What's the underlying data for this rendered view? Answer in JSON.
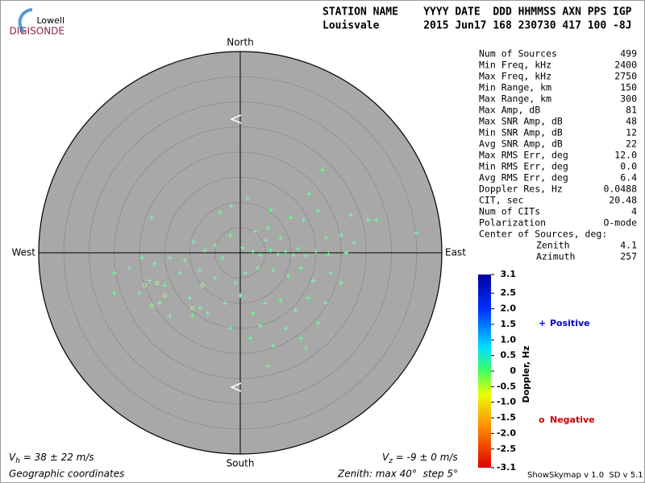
{
  "logo": {
    "top": "Lowell",
    "bottom": "DIGISONDE"
  },
  "header": {
    "labels": "STATION NAME    YYYY DATE  DDD HHMMSS AXN PPS IGP",
    "values": "Louisvale       2015 Jun17 168 230730 417 100 -8J"
  },
  "stats": [
    [
      "Num of Sources",
      "499"
    ],
    [
      "Min Freq, kHz",
      "2400"
    ],
    [
      "Max Freq, kHz",
      "2750"
    ],
    [
      "Min Range, km",
      "150"
    ],
    [
      "Max Range, km",
      "300"
    ],
    [
      "Max Amp, dB",
      "81"
    ],
    [
      "Max SNR Amp, dB",
      "48"
    ],
    [
      "Min SNR Amp, dB",
      "12"
    ],
    [
      "Avg SNR Amp, dB",
      "22"
    ],
    [
      "Max RMS Err, deg",
      "12.0"
    ],
    [
      "Min RMS Err, deg",
      "0.0"
    ],
    [
      "Avg RMS Err, deg",
      "6.4"
    ],
    [
      "Doppler Res, Hz",
      "0.0488"
    ],
    [
      "CIT, sec",
      "20.48"
    ],
    [
      "Num of CITs",
      "4"
    ],
    [
      "Polarization",
      "O-mode"
    ]
  ],
  "center_of_sources": {
    "label": "Center of Sources, deg:",
    "rows": [
      [
        "Zenith",
        "4.1"
      ],
      [
        "Azimuth",
        "257"
      ]
    ]
  },
  "velocity": {
    "horizontal": {
      "symbol": "V",
      "sub": "h",
      "text": " = 38 ± 22 m/s"
    },
    "vertical": {
      "symbol": "V",
      "sub": "z",
      "text": " = -9 ± 0 m/s"
    }
  },
  "footer": {
    "coordinates": "Geographic coordinates",
    "zenith": "Zenith: max 40°  step 5°",
    "version": "ShowSkymap v 1.0  SD v 5.1"
  },
  "chart_data": {
    "type": "scatter",
    "directions": {
      "north": "North",
      "south": "South",
      "east": "East",
      "west": "West"
    },
    "xlim": [
      -40,
      40
    ],
    "ylim": [
      -40,
      40
    ],
    "rings": [
      5,
      10,
      15,
      20,
      25,
      30,
      35,
      40
    ],
    "series": [
      {
        "name": "Positive",
        "marker": "plus",
        "color": "#70ffa0",
        "legend_color": "#0000cc",
        "x": [
          16.3,
          13.6,
          15.4,
          25.4,
          34.9,
          12.6,
          5.5,
          -1.8,
          -17.6,
          -9.3,
          -7.0,
          -3.5,
          0.5,
          2.5,
          4.0,
          6.0,
          7.5,
          9.0,
          10.5,
          11.5,
          13.0,
          15.0,
          17.5,
          21.0,
          5.0,
          8.0,
          3.0,
          -2.0,
          -5.0,
          -11.0,
          -14.0,
          -17.0,
          -19.5,
          -22.0,
          -25.0,
          -18.0,
          -15.0,
          -12.0,
          -8.0,
          -5.0,
          -1.0,
          1.0,
          3.5,
          6.5,
          9.5,
          12.0,
          14.5,
          18.0,
          20.0,
          -20.0,
          -16.0,
          -10.0,
          -6.5,
          -3.0,
          0.0,
          2.5,
          5.0,
          8.0,
          11.0,
          13.5,
          17.0,
          -25.0,
          -14.0,
          -9.5,
          4.0,
          9.0,
          12.0,
          15.5,
          6.5,
          5.5,
          13.0,
          2.0,
          -2.0,
          -8.0,
          1.5,
          6.0,
          10.0,
          -4.0,
          20.0,
          22.5,
          27.0,
          22.0,
          17.0
        ],
        "values": [
          16.5,
          11.7,
          8.3,
          6.6,
          4.0,
          6.6,
          5.0,
          9.3,
          7.0,
          2.2,
          0.5,
          -1.0,
          1.0,
          0.3,
          -0.5,
          0.5,
          -0.3,
          0.2,
          -0.5,
          0.8,
          -0.6,
          0.2,
          -0.3,
          0.0,
          2.5,
          3.0,
          4.2,
          3.5,
          1.5,
          -1.5,
          -1.0,
          -2.2,
          -1.0,
          -3.0,
          -4.0,
          -5.5,
          -6.5,
          -4.0,
          -3.5,
          -5.0,
          -6.0,
          -4.0,
          -3.0,
          -3.5,
          -4.5,
          -3.0,
          -5.5,
          -4.0,
          -6.0,
          -8.0,
          -10.0,
          -9.0,
          -12.0,
          -10.0,
          -8.5,
          -12.0,
          -10.0,
          -9.5,
          -11.5,
          -9.0,
          -10.0,
          -8.0,
          -12.5,
          -12.5,
          -14.5,
          -15.0,
          -17.0,
          -14.0,
          -18.5,
          -22.5,
          -19.0,
          -17.0,
          -15.0,
          -11.0,
          10.8,
          8.5,
          7.0,
          8.0,
          3.5,
          2.0,
          6.5,
          7.5,
          3.0
        ]
      },
      {
        "name": "Negative",
        "marker": "circle",
        "color": "#a8ff80",
        "legend_color": "#cc0000",
        "x": [
          -16.5,
          -19.0,
          -15.0,
          -7.5,
          -9.5,
          -17.5
        ],
        "values": [
          -6.0,
          -6.5,
          -8.5,
          -6.5,
          -11.0,
          -10.5
        ]
      }
    ],
    "colorbar": {
      "label": "Doppler, Hz",
      "lim": [
        -3.1,
        3.1
      ],
      "ticks": [
        3.1,
        2.5,
        {
          "value": 2.0,
          "label": "2.0"
        },
        1.5,
        {
          "value": 1.0,
          "label": "1.0"
        },
        0.5,
        0,
        -0.5,
        {
          "value": -1.0,
          "label": "-1.0"
        },
        -1.5,
        {
          "value": -2.0,
          "label": "-2.0"
        },
        -2.5,
        -3.1
      ]
    }
  }
}
